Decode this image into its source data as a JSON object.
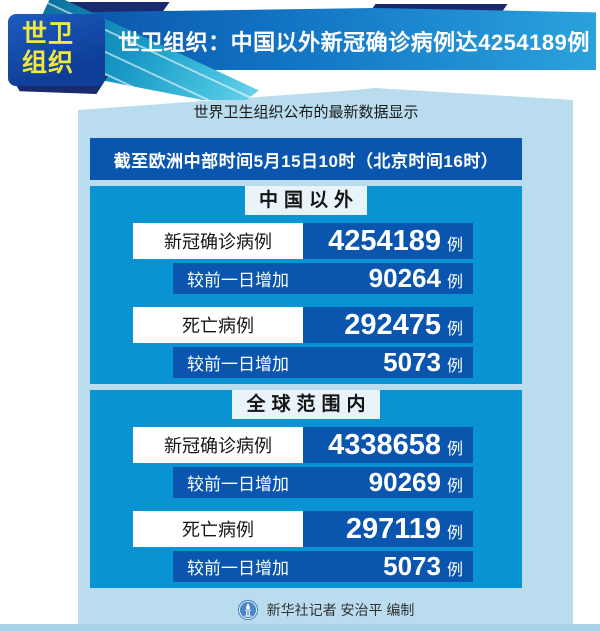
{
  "header": {
    "badge": {
      "line1": "世卫",
      "line2": "组织"
    },
    "title": "世卫组织：中国以外新冠确诊病例达4254189例"
  },
  "intro": "世界卫生组织公布的最新数据显示",
  "datetime_bar": "截至欧洲中部时间5月15日10时（北京时间16时）",
  "sections": [
    {
      "title": "中国以外",
      "rows": [
        {
          "kind": "total",
          "label": "新冠确诊病例",
          "value": "4254189",
          "unit": "例"
        },
        {
          "kind": "increase",
          "label": "较前一日增加",
          "value": "90264",
          "unit": "例"
        },
        {
          "kind": "total",
          "label": "死亡病例",
          "value": "292475",
          "unit": "例"
        },
        {
          "kind": "increase",
          "label": "较前一日增加",
          "value": "5073",
          "unit": "例"
        }
      ]
    },
    {
      "title": "全球范围内",
      "rows": [
        {
          "kind": "total",
          "label": "新冠确诊病例",
          "value": "4338658",
          "unit": "例"
        },
        {
          "kind": "increase",
          "label": "较前一日增加",
          "value": "90269",
          "unit": "例"
        },
        {
          "kind": "total",
          "label": "死亡病例",
          "value": "297119",
          "unit": "例"
        },
        {
          "kind": "increase",
          "label": "较前一日增加",
          "value": "5073",
          "unit": "例"
        }
      ]
    }
  ],
  "footer": {
    "credit": "新华社记者 安治平 编制",
    "logo": "xinhua-logo-icon"
  },
  "colors": {
    "header_blue_dark": "#0b4fa5",
    "header_blue_light": "#2ba2dc",
    "panel_light_blue": "#b9dcee",
    "section_blue": "#0a93d3",
    "deep_blue": "#0a55ad",
    "badge_yellow": "#efe93e",
    "ribbon_teal": "#1899c6",
    "accent_navy": "#1a2a6e",
    "logo_blue": "#4a85c5"
  },
  "chart_data": {
    "type": "table",
    "title": "世卫组织：中国以外新冠确诊病例达4254189例",
    "subtitle": "世界卫生组织公布的最新数据显示",
    "as_of": "截至欧洲中部时间5月15日10时（北京时间16时）",
    "unit": "例",
    "groups": [
      {
        "name": "中国以外",
        "confirmed_cases": 4254189,
        "confirmed_daily_increase": 90264,
        "death_cases": 292475,
        "death_daily_increase": 5073
      },
      {
        "name": "全球范围内",
        "confirmed_cases": 4338658,
        "confirmed_daily_increase": 90269,
        "death_cases": 297119,
        "death_daily_increase": 5073
      }
    ],
    "source_credit": "新华社记者 安治平 编制"
  }
}
